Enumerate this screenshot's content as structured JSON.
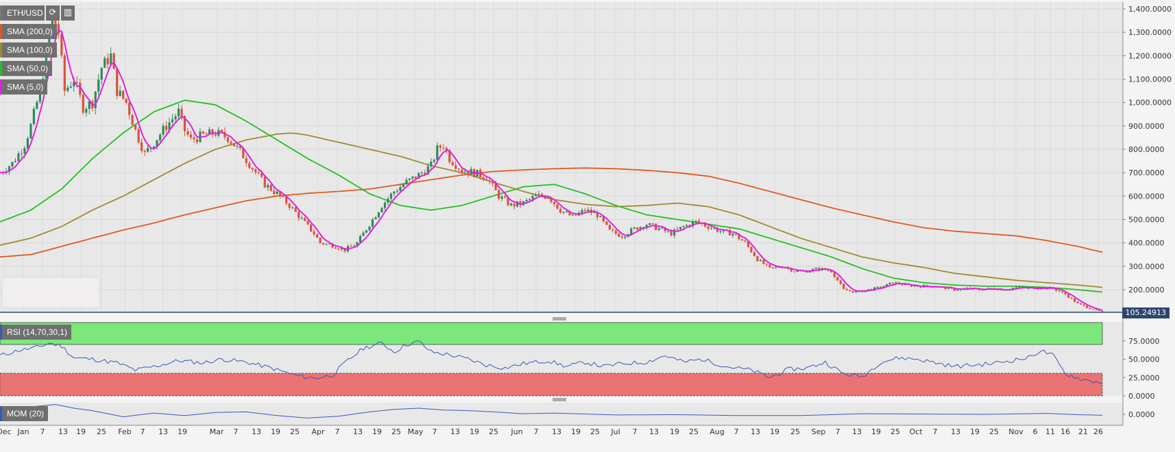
{
  "symbol": "ETH/USD",
  "toolbar": {
    "refresh_icon": "refresh-icon",
    "reset_icon": "reset-zoom-icon"
  },
  "indicators": [
    {
      "label": "SMA (200,0)",
      "color": "#e05a20"
    },
    {
      "label": "SMA (100,0)",
      "color": "#a08a30"
    },
    {
      "label": "SMA (50,0)",
      "color": "#22c022"
    },
    {
      "label": "SMA (5,0)",
      "color": "#e020e0"
    }
  ],
  "last_price": "105.24913",
  "rsi_label": "RSI (14,70,30,1)",
  "mom_label": "MOM (20)",
  "colors": {
    "up": "#2e8b57",
    "down": "#d9533a",
    "rsi_line": "#3a58b8",
    "overbought": "#7be87b",
    "oversold": "#ea7373",
    "price_tag": "#2c4670"
  },
  "chart_data": [
    {
      "type": "candlestick",
      "title": "ETH/USD",
      "y_ticks": [
        "1,400.0000",
        "1,300.0000",
        "1,200.0000",
        "1,100.0000",
        "1,000.0000",
        "900.0000",
        "800.0000",
        "700.0000",
        "600.0000",
        "500.0000",
        "400.0000",
        "300.0000",
        "200.0000"
      ],
      "ylim": [
        105,
        1420
      ],
      "x_ticks": [
        "Dec",
        "Jan",
        "7",
        "13",
        "19",
        "25",
        "Feb",
        "7",
        "13",
        "19",
        "Mar",
        "7",
        "13",
        "19",
        "25",
        "Apr",
        "7",
        "13",
        "19",
        "25",
        "May",
        "7",
        "13",
        "19",
        "25",
        "Jun",
        "7",
        "13",
        "19",
        "25",
        "Jul",
        "7",
        "13",
        "19",
        "25",
        "Aug",
        "7",
        "13",
        "19",
        "25",
        "Sep",
        "7",
        "13",
        "19",
        "25",
        "Oct",
        "7",
        "13",
        "19",
        "25",
        "Nov",
        "6",
        "11",
        "16",
        "21",
        "26"
      ],
      "price_anchors": [
        [
          0,
          700
        ],
        [
          4,
          740
        ],
        [
          8,
          820
        ],
        [
          10,
          900
        ],
        [
          13,
          1050
        ],
        [
          15,
          1200
        ],
        [
          17,
          1380
        ],
        [
          19,
          1300
        ],
        [
          21,
          1050
        ],
        [
          24,
          1100
        ],
        [
          27,
          980
        ],
        [
          30,
          1000
        ],
        [
          33,
          1150
        ],
        [
          36,
          1200
        ],
        [
          38,
          1050
        ],
        [
          41,
          1000
        ],
        [
          44,
          880
        ],
        [
          47,
          780
        ],
        [
          50,
          830
        ],
        [
          54,
          900
        ],
        [
          58,
          960
        ],
        [
          60,
          880
        ],
        [
          62,
          840
        ],
        [
          66,
          860
        ],
        [
          70,
          870
        ],
        [
          74,
          850
        ],
        [
          78,
          790
        ],
        [
          82,
          720
        ],
        [
          86,
          650
        ],
        [
          90,
          610
        ],
        [
          94,
          560
        ],
        [
          98,
          500
        ],
        [
          102,
          440
        ],
        [
          104,
          400
        ],
        [
          108,
          390
        ],
        [
          112,
          370
        ],
        [
          116,
          400
        ],
        [
          120,
          480
        ],
        [
          124,
          560
        ],
        [
          128,
          620
        ],
        [
          132,
          660
        ],
        [
          136,
          690
        ],
        [
          140,
          730
        ],
        [
          142,
          800
        ],
        [
          144,
          820
        ],
        [
          146,
          760
        ],
        [
          150,
          710
        ],
        [
          154,
          700
        ],
        [
          158,
          680
        ],
        [
          162,
          600
        ],
        [
          166,
          560
        ],
        [
          170,
          570
        ],
        [
          174,
          600
        ],
        [
          178,
          600
        ],
        [
          182,
          540
        ],
        [
          186,
          510
        ],
        [
          190,
          540
        ],
        [
          194,
          520
        ],
        [
          198,
          450
        ],
        [
          202,
          430
        ],
        [
          206,
          460
        ],
        [
          210,
          480
        ],
        [
          214,
          460
        ],
        [
          218,
          440
        ],
        [
          222,
          470
        ],
        [
          226,
          490
        ],
        [
          230,
          470
        ],
        [
          234,
          450
        ],
        [
          238,
          440
        ],
        [
          242,
          400
        ],
        [
          246,
          330
        ],
        [
          250,
          290
        ],
        [
          254,
          300
        ],
        [
          258,
          280
        ],
        [
          262,
          280
        ],
        [
          266,
          290
        ],
        [
          270,
          280
        ],
        [
          274,
          200
        ],
        [
          278,
          190
        ],
        [
          282,
          200
        ],
        [
          286,
          210
        ],
        [
          290,
          230
        ],
        [
          294,
          220
        ],
        [
          298,
          215
        ],
        [
          302,
          215
        ],
        [
          306,
          210
        ],
        [
          310,
          200
        ],
        [
          314,
          205
        ],
        [
          318,
          200
        ],
        [
          322,
          205
        ],
        [
          326,
          200
        ],
        [
          330,
          210
        ],
        [
          334,
          205
        ],
        [
          338,
          210
        ],
        [
          342,
          205
        ],
        [
          346,
          180
        ],
        [
          350,
          140
        ],
        [
          354,
          120
        ],
        [
          358,
          105
        ]
      ],
      "sma_series": [
        {
          "name": "SMA (200,0)",
          "values": [
            [
              0,
              340
            ],
            [
              10,
              350
            ],
            [
              20,
              385
            ],
            [
              30,
              420
            ],
            [
              40,
              455
            ],
            [
              50,
              485
            ],
            [
              60,
              520
            ],
            [
              70,
              550
            ],
            [
              80,
              580
            ],
            [
              90,
              600
            ],
            [
              100,
              612
            ],
            [
              110,
              620
            ],
            [
              120,
              630
            ],
            [
              130,
              650
            ],
            [
              140,
              670
            ],
            [
              150,
              690
            ],
            [
              160,
              705
            ],
            [
              170,
              712
            ],
            [
              180,
              717
            ],
            [
              190,
              720
            ],
            [
              200,
              717
            ],
            [
              210,
              710
            ],
            [
              220,
              700
            ],
            [
              230,
              685
            ],
            [
              240,
              655
            ],
            [
              250,
              620
            ],
            [
              260,
              585
            ],
            [
              270,
              550
            ],
            [
              280,
              520
            ],
            [
              290,
              490
            ],
            [
              300,
              465
            ],
            [
              310,
              450
            ],
            [
              320,
              440
            ],
            [
              330,
              430
            ],
            [
              340,
              410
            ],
            [
              350,
              385
            ],
            [
              358,
              360
            ]
          ]
        },
        {
          "name": "SMA (100,0)",
          "values": [
            [
              0,
              390
            ],
            [
              10,
              420
            ],
            [
              20,
              470
            ],
            [
              30,
              540
            ],
            [
              40,
              600
            ],
            [
              50,
              670
            ],
            [
              60,
              740
            ],
            [
              70,
              800
            ],
            [
              80,
              840
            ],
            [
              90,
              865
            ],
            [
              95,
              870
            ],
            [
              100,
              860
            ],
            [
              110,
              830
            ],
            [
              120,
              800
            ],
            [
              130,
              770
            ],
            [
              140,
              730
            ],
            [
              150,
              700
            ],
            [
              160,
              660
            ],
            [
              170,
              620
            ],
            [
              180,
              585
            ],
            [
              190,
              565
            ],
            [
              200,
              555
            ],
            [
              210,
              560
            ],
            [
              220,
              570
            ],
            [
              230,
              555
            ],
            [
              240,
              520
            ],
            [
              250,
              470
            ],
            [
              260,
              420
            ],
            [
              270,
              380
            ],
            [
              280,
              340
            ],
            [
              290,
              315
            ],
            [
              300,
              295
            ],
            [
              310,
              270
            ],
            [
              320,
              255
            ],
            [
              330,
              240
            ],
            [
              340,
              230
            ],
            [
              350,
              220
            ],
            [
              358,
              210
            ]
          ]
        },
        {
          "name": "SMA (50,0)",
          "values": [
            [
              0,
              490
            ],
            [
              10,
              540
            ],
            [
              20,
              630
            ],
            [
              30,
              760
            ],
            [
              40,
              870
            ],
            [
              50,
              960
            ],
            [
              60,
              1010
            ],
            [
              70,
              990
            ],
            [
              80,
              920
            ],
            [
              90,
              840
            ],
            [
              100,
              760
            ],
            [
              110,
              690
            ],
            [
              120,
              610
            ],
            [
              130,
              560
            ],
            [
              140,
              540
            ],
            [
              150,
              560
            ],
            [
              160,
              600
            ],
            [
              170,
              640
            ],
            [
              180,
              650
            ],
            [
              190,
              610
            ],
            [
              200,
              560
            ],
            [
              210,
              520
            ],
            [
              220,
              500
            ],
            [
              230,
              480
            ],
            [
              240,
              460
            ],
            [
              250,
              420
            ],
            [
              260,
              380
            ],
            [
              270,
              340
            ],
            [
              280,
              290
            ],
            [
              290,
              250
            ],
            [
              300,
              230
            ],
            [
              310,
              220
            ],
            [
              320,
              215
            ],
            [
              330,
              215
            ],
            [
              340,
              210
            ],
            [
              350,
              200
            ],
            [
              358,
              190
            ]
          ]
        }
      ]
    },
    {
      "type": "line",
      "title": "RSI (14,70,30,1)",
      "y_ticks": [
        "75.0000",
        "50.0000",
        "25.0000",
        "0.0000"
      ],
      "ylim": [
        0,
        100
      ],
      "overbought": 70,
      "oversold": 30,
      "values": [
        [
          0,
          55
        ],
        [
          6,
          62
        ],
        [
          12,
          66
        ],
        [
          16,
          72
        ],
        [
          20,
          68
        ],
        [
          24,
          52
        ],
        [
          30,
          50
        ],
        [
          38,
          45
        ],
        [
          44,
          35
        ],
        [
          50,
          40
        ],
        [
          58,
          48
        ],
        [
          66,
          45
        ],
        [
          72,
          50
        ],
        [
          80,
          46
        ],
        [
          88,
          38
        ],
        [
          96,
          28
        ],
        [
          102,
          24
        ],
        [
          108,
          28
        ],
        [
          112,
          45
        ],
        [
          118,
          65
        ],
        [
          124,
          72
        ],
        [
          128,
          60
        ],
        [
          132,
          70
        ],
        [
          136,
          74
        ],
        [
          140,
          60
        ],
        [
          146,
          56
        ],
        [
          152,
          50
        ],
        [
          158,
          42
        ],
        [
          164,
          38
        ],
        [
          170,
          44
        ],
        [
          178,
          48
        ],
        [
          184,
          40
        ],
        [
          190,
          46
        ],
        [
          196,
          40
        ],
        [
          202,
          44
        ],
        [
          210,
          46
        ],
        [
          216,
          55
        ],
        [
          222,
          46
        ],
        [
          228,
          50
        ],
        [
          236,
          40
        ],
        [
          244,
          35
        ],
        [
          250,
          25
        ],
        [
          256,
          36
        ],
        [
          262,
          38
        ],
        [
          268,
          46
        ],
        [
          274,
          30
        ],
        [
          280,
          26
        ],
        [
          286,
          46
        ],
        [
          292,
          52
        ],
        [
          298,
          50
        ],
        [
          304,
          45
        ],
        [
          310,
          40
        ],
        [
          316,
          42
        ],
        [
          322,
          44
        ],
        [
          328,
          48
        ],
        [
          334,
          52
        ],
        [
          338,
          62
        ],
        [
          342,
          55
        ],
        [
          346,
          30
        ],
        [
          352,
          22
        ],
        [
          358,
          18
        ]
      ]
    },
    {
      "type": "line",
      "title": "MOM (20)",
      "y_ticks": [
        "0.0000"
      ],
      "values": [
        [
          0,
          80
        ],
        [
          10,
          120
        ],
        [
          18,
          160
        ],
        [
          24,
          100
        ],
        [
          30,
          60
        ],
        [
          40,
          -40
        ],
        [
          50,
          20
        ],
        [
          60,
          -20
        ],
        [
          70,
          30
        ],
        [
          80,
          40
        ],
        [
          90,
          -20
        ],
        [
          100,
          -60
        ],
        [
          110,
          -30
        ],
        [
          120,
          40
        ],
        [
          128,
          80
        ],
        [
          136,
          100
        ],
        [
          144,
          70
        ],
        [
          152,
          60
        ],
        [
          160,
          40
        ],
        [
          170,
          10
        ],
        [
          180,
          20
        ],
        [
          200,
          -10
        ],
        [
          220,
          -5
        ],
        [
          240,
          -20
        ],
        [
          260,
          -20
        ],
        [
          280,
          10
        ],
        [
          300,
          5
        ],
        [
          320,
          0
        ],
        [
          340,
          15
        ],
        [
          350,
          -5
        ],
        [
          358,
          -15
        ]
      ]
    }
  ]
}
